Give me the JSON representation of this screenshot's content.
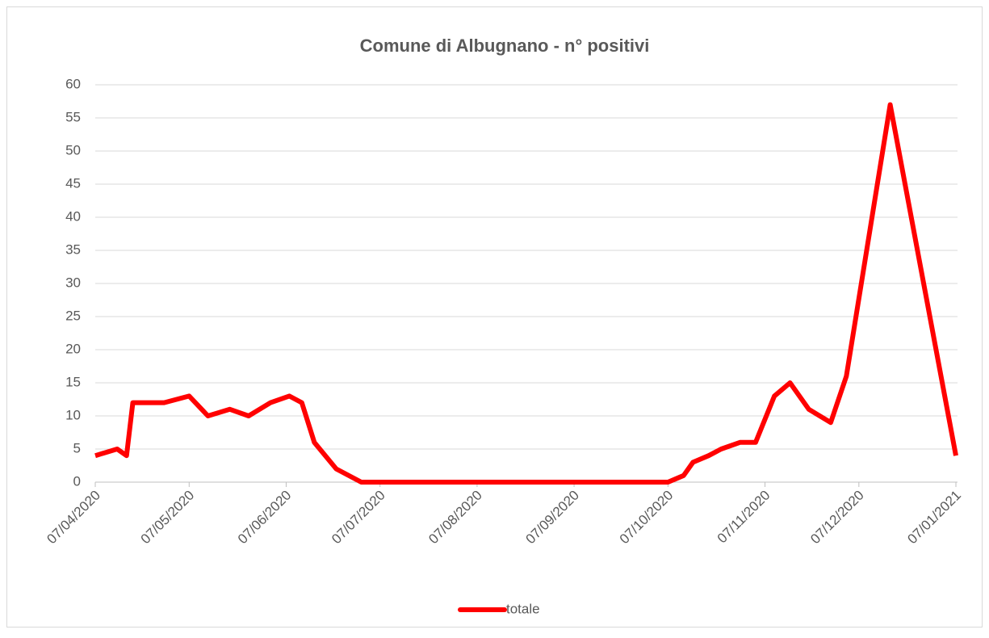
{
  "chart_data": {
    "type": "line",
    "title": "Comune di Albugnano - n° positivi",
    "x": [
      "2020-04-07",
      "2020-04-14",
      "2020-04-17",
      "2020-04-19",
      "2020-04-24",
      "2020-04-29",
      "2020-05-07",
      "2020-05-13",
      "2020-05-20",
      "2020-05-26",
      "2020-06-02",
      "2020-06-08",
      "2020-06-12",
      "2020-06-16",
      "2020-06-23",
      "2020-07-01",
      "2020-10-07",
      "2020-10-12",
      "2020-10-15",
      "2020-10-20",
      "2020-10-24",
      "2020-10-30",
      "2020-11-04",
      "2020-11-10",
      "2020-11-15",
      "2020-11-21",
      "2020-11-28",
      "2020-12-03",
      "2020-12-17",
      "2021-01-07"
    ],
    "series": [
      {
        "name": "totale",
        "color": "#ff0000",
        "values": [
          4,
          5,
          4,
          12,
          12,
          12,
          13,
          10,
          11,
          10,
          12,
          13,
          12,
          6,
          2,
          0,
          0,
          1,
          3,
          4,
          5,
          6,
          6,
          13,
          15,
          11,
          9,
          16,
          57,
          4
        ]
      }
    ],
    "xlim": [
      "2020-04-07",
      "2021-01-07"
    ],
    "xticks": [
      {
        "value": "2020-04-07",
        "label": "07/04/2020"
      },
      {
        "value": "2020-05-07",
        "label": "07/05/2020"
      },
      {
        "value": "2020-06-07",
        "label": "07/06/2020"
      },
      {
        "value": "2020-07-07",
        "label": "07/07/2020"
      },
      {
        "value": "2020-08-07",
        "label": "07/08/2020"
      },
      {
        "value": "2020-09-07",
        "label": "07/09/2020"
      },
      {
        "value": "2020-10-07",
        "label": "07/10/2020"
      },
      {
        "value": "2020-11-07",
        "label": "07/11/2020"
      },
      {
        "value": "2020-12-07",
        "label": "07/12/2020"
      },
      {
        "value": "2021-01-07",
        "label": "07/01/2021"
      }
    ],
    "ylim": [
      0,
      60
    ],
    "yticks": [
      0,
      5,
      10,
      15,
      20,
      25,
      30,
      35,
      40,
      45,
      50,
      55,
      60
    ],
    "grid": true,
    "legend": "bottom"
  }
}
